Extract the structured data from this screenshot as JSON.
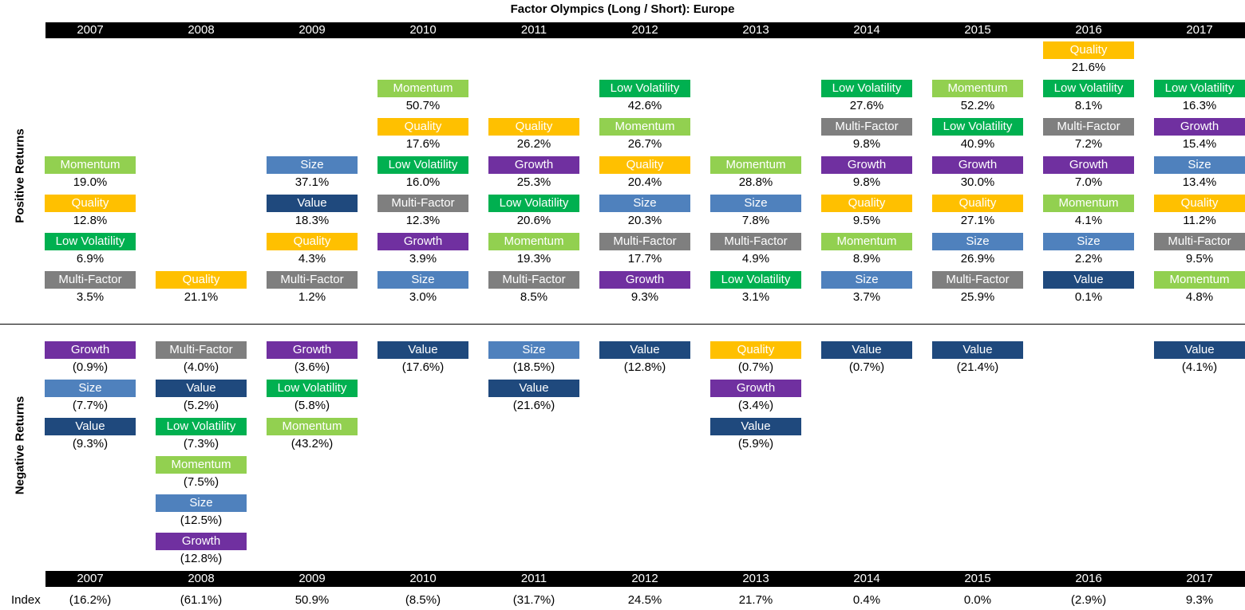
{
  "title": "Factor Olympics (Long / Short): Europe",
  "years": [
    "2007",
    "2008",
    "2009",
    "2010",
    "2011",
    "2012",
    "2013",
    "2014",
    "2015",
    "2016",
    "2017"
  ],
  "positive_label": "Positive Returns",
  "negative_label": "Negative Returns",
  "index_label": "Index",
  "colors": {
    "Momentum": "#92d050",
    "Quality": "#ffc000",
    "Low Volatility": "#00b050",
    "Multi-Factor": "#7f7f7f",
    "Size": "#4f81bd",
    "Value": "#1f497d",
    "Growth": "#7030a0"
  },
  "chart_data": {
    "type": "table",
    "title": "Factor Olympics (Long / Short): Europe",
    "columns": [
      {
        "year": "2007",
        "positive": [
          [
            "Momentum",
            "19.0%"
          ],
          [
            "Quality",
            "12.8%"
          ],
          [
            "Low Volatility",
            "6.9%"
          ],
          [
            "Multi-Factor",
            "3.5%"
          ]
        ],
        "negative": [
          [
            "Growth",
            "(0.9%)"
          ],
          [
            "Size",
            "(7.7%)"
          ],
          [
            "Value",
            "(9.3%)"
          ]
        ],
        "index": "(16.2%)"
      },
      {
        "year": "2008",
        "positive": [
          [
            "Quality",
            "21.1%"
          ]
        ],
        "negative": [
          [
            "Multi-Factor",
            "(4.0%)"
          ],
          [
            "Value",
            "(5.2%)"
          ],
          [
            "Low Volatility",
            "(7.3%)"
          ],
          [
            "Momentum",
            "(7.5%)"
          ],
          [
            "Size",
            "(12.5%)"
          ],
          [
            "Growth",
            "(12.8%)"
          ]
        ],
        "index": "(61.1%)"
      },
      {
        "year": "2009",
        "positive": [
          [
            "Size",
            "37.1%"
          ],
          [
            "Value",
            "18.3%"
          ],
          [
            "Quality",
            "4.3%"
          ],
          [
            "Multi-Factor",
            "1.2%"
          ]
        ],
        "negative": [
          [
            "Growth",
            "(3.6%)"
          ],
          [
            "Low Volatility",
            "(5.8%)"
          ],
          [
            "Momentum",
            "(43.2%)"
          ]
        ],
        "index": "50.9%"
      },
      {
        "year": "2010",
        "positive": [
          [
            "Momentum",
            "50.7%"
          ],
          [
            "Quality",
            "17.6%"
          ],
          [
            "Low Volatility",
            "16.0%"
          ],
          [
            "Multi-Factor",
            "12.3%"
          ],
          [
            "Growth",
            "3.9%"
          ],
          [
            "Size",
            "3.0%"
          ]
        ],
        "negative": [
          [
            "Value",
            "(17.6%)"
          ]
        ],
        "index": "(8.5%)"
      },
      {
        "year": "2011",
        "positive": [
          [
            "Quality",
            "26.2%"
          ],
          [
            "Growth",
            "25.3%"
          ],
          [
            "Low Volatility",
            "20.6%"
          ],
          [
            "Momentum",
            "19.3%"
          ],
          [
            "Multi-Factor",
            "8.5%"
          ]
        ],
        "negative": [
          [
            "Size",
            "(18.5%)"
          ],
          [
            "Value",
            "(21.6%)"
          ]
        ],
        "index": "(31.7%)"
      },
      {
        "year": "2012",
        "positive": [
          [
            "Low Volatility",
            "42.6%"
          ],
          [
            "Momentum",
            "26.7%"
          ],
          [
            "Quality",
            "20.4%"
          ],
          [
            "Size",
            "20.3%"
          ],
          [
            "Multi-Factor",
            "17.7%"
          ],
          [
            "Growth",
            "9.3%"
          ]
        ],
        "negative": [
          [
            "Value",
            "(12.8%)"
          ]
        ],
        "index": "24.5%"
      },
      {
        "year": "2013",
        "positive": [
          [
            "Momentum",
            "28.8%"
          ],
          [
            "Size",
            "7.8%"
          ],
          [
            "Multi-Factor",
            "4.9%"
          ],
          [
            "Low Volatility",
            "3.1%"
          ]
        ],
        "negative": [
          [
            "Quality",
            "(0.7%)"
          ],
          [
            "Growth",
            "(3.4%)"
          ],
          [
            "Value",
            "(5.9%)"
          ]
        ],
        "index": "21.7%"
      },
      {
        "year": "2014",
        "positive": [
          [
            "Low Volatility",
            "27.6%"
          ],
          [
            "Multi-Factor",
            "9.8%"
          ],
          [
            "Growth",
            "9.8%"
          ],
          [
            "Quality",
            "9.5%"
          ],
          [
            "Momentum",
            "8.9%"
          ],
          [
            "Size",
            "3.7%"
          ]
        ],
        "negative": [
          [
            "Value",
            "(0.7%)"
          ]
        ],
        "index": "0.4%"
      },
      {
        "year": "2015",
        "positive": [
          [
            "Momentum",
            "52.2%"
          ],
          [
            "Low Volatility",
            "40.9%"
          ],
          [
            "Growth",
            "30.0%"
          ],
          [
            "Quality",
            "27.1%"
          ],
          [
            "Size",
            "26.9%"
          ],
          [
            "Multi-Factor",
            "25.9%"
          ]
        ],
        "negative": [
          [
            "Value",
            "(21.4%)"
          ]
        ],
        "index": "0.0%"
      },
      {
        "year": "2016",
        "positive": [
          [
            "Quality",
            "21.6%"
          ],
          [
            "Low Volatility",
            "8.1%"
          ],
          [
            "Multi-Factor",
            "7.2%"
          ],
          [
            "Growth",
            "7.0%"
          ],
          [
            "Momentum",
            "4.1%"
          ],
          [
            "Size",
            "2.2%"
          ],
          [
            "Value",
            "0.1%"
          ]
        ],
        "negative": [],
        "index": "(2.9%)"
      },
      {
        "year": "2017",
        "positive": [
          [
            "Low Volatility",
            "16.3%"
          ],
          [
            "Growth",
            "15.4%"
          ],
          [
            "Size",
            "13.4%"
          ],
          [
            "Quality",
            "11.2%"
          ],
          [
            "Multi-Factor",
            "9.5%"
          ],
          [
            "Momentum",
            "4.8%"
          ]
        ],
        "negative": [
          [
            "Value",
            "(4.1%)"
          ]
        ],
        "index": "9.3%"
      }
    ]
  }
}
